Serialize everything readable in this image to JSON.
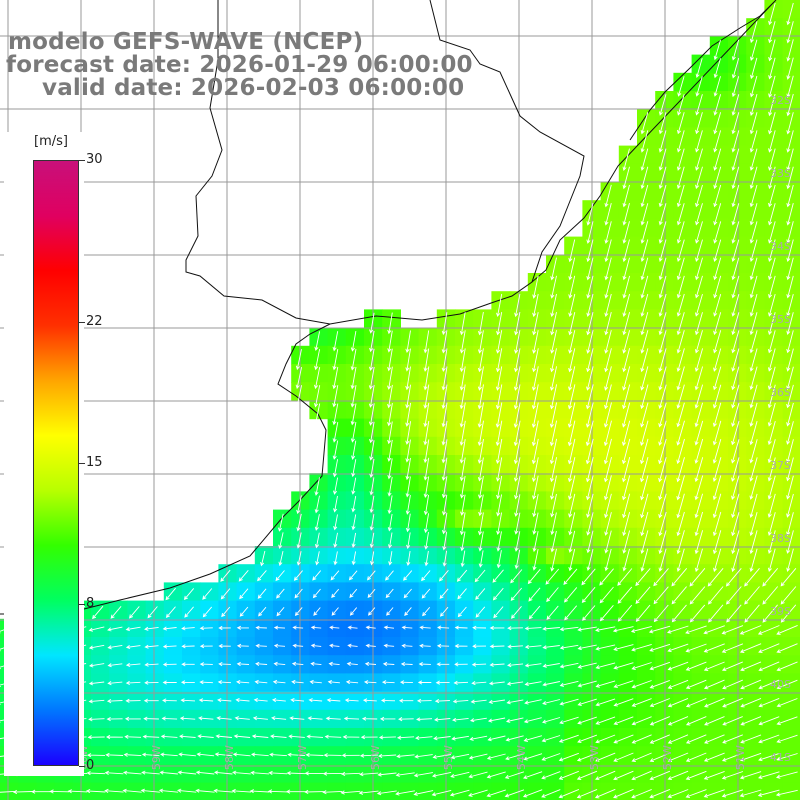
{
  "title": {
    "model": "modelo GEFS-WAVE (NCEP)",
    "forecast": "forecast date: 2026-01-29 06:00:00",
    "valid": "valid date: 2026-02-03 06:00:00"
  },
  "colorbar": {
    "unit": "[m/s]",
    "ticks": [
      "30",
      "22",
      "15",
      "8",
      "0"
    ],
    "tick_values": [
      30,
      22,
      15,
      8,
      0
    ],
    "range": [
      0,
      30
    ],
    "colors": [
      "#1a00ff",
      "#0077ff",
      "#00e6ff",
      "#00ff60",
      "#33ff00",
      "#b8ff00",
      "#ffff00",
      "#ffa500",
      "#ff3000",
      "#ff0000",
      "#e00060",
      "#c8107a"
    ]
  },
  "map": {
    "lat_labels": [
      "32S",
      "33S",
      "34S",
      "35S",
      "36S",
      "37S",
      "38S",
      "39S",
      "40S",
      "41S"
    ],
    "lon_labels": [
      "61W",
      "60W",
      "59W",
      "58W",
      "57W",
      "56W",
      "55W",
      "54W",
      "53W",
      "52W",
      "51W"
    ],
    "land_color": "#ffffff",
    "grid_color": "#999999",
    "arrow_color": "#ffffff"
  }
}
